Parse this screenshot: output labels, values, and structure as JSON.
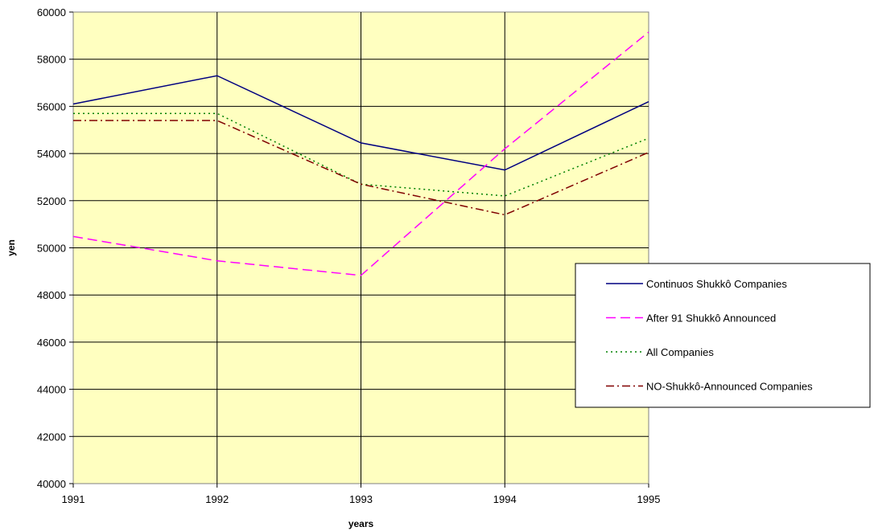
{
  "chart_data": {
    "type": "line",
    "title": "",
    "xlabel": "years",
    "ylabel": "yen",
    "x": [
      "1991",
      "1992",
      "1993",
      "1994",
      "1995"
    ],
    "ylim": [
      40000,
      60000
    ],
    "yticks": [
      "40000",
      "42000",
      "44000",
      "46000",
      "48000",
      "50000",
      "52000",
      "54000",
      "56000",
      "58000",
      "60000"
    ],
    "grid": true,
    "legend_position": "right",
    "colors": {
      "plot_background": "#ffffc0",
      "grid": "#000000",
      "border": "#808080"
    },
    "series": [
      {
        "name": "Continuos Shukkô Companies",
        "values": [
          56100,
          57300,
          54450,
          53300,
          56200
        ],
        "color": "#000080",
        "dash": "solid"
      },
      {
        "name": "After 91 Shukkô Announced",
        "values": [
          50480,
          49450,
          48830,
          54200,
          59150
        ],
        "color": "#ff00ff",
        "dash": "dashed"
      },
      {
        "name": "All Companies",
        "values": [
          55700,
          55700,
          52700,
          52200,
          54650
        ],
        "color": "#008000",
        "dash": "dotted"
      },
      {
        "name": "NO-Shukkô-Announced Companies",
        "values": [
          55400,
          55400,
          52700,
          51400,
          54050
        ],
        "color": "#800000",
        "dash": "dashdot"
      }
    ]
  }
}
